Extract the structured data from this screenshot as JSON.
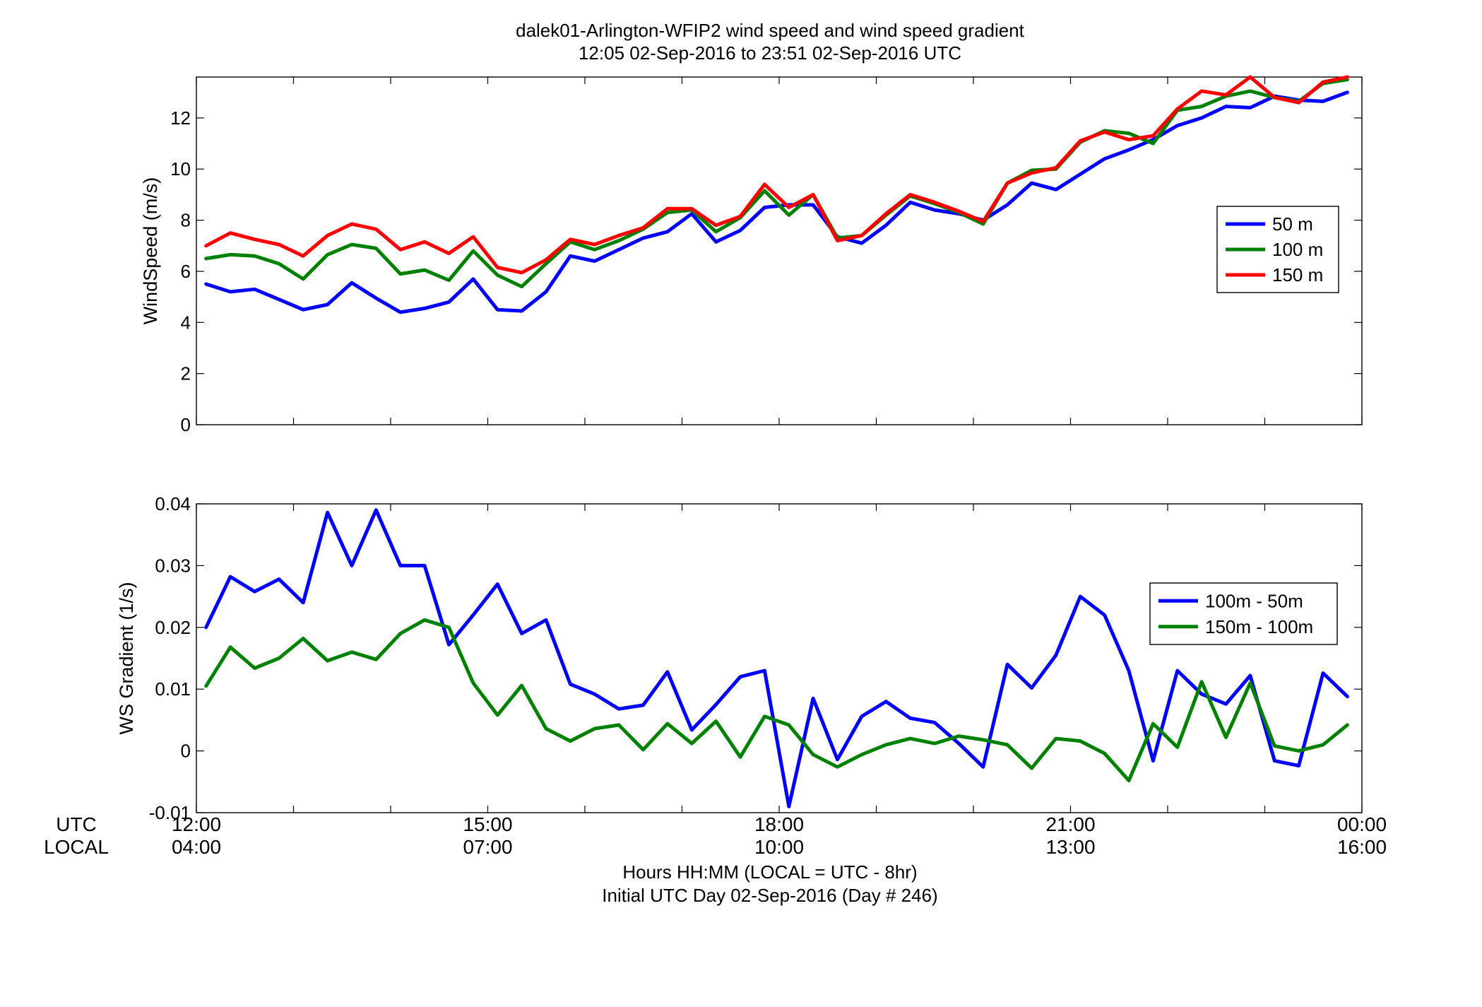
{
  "title_line1": "dalek01-Arlington-WFIP2  wind speed and wind speed gradient",
  "title_line2": "12:05 02-Sep-2016 to 23:51 02-Sep-2016  UTC",
  "row_labels": {
    "utc": "UTC",
    "local": "LOCAL"
  },
  "time_ticks": {
    "utc": [
      "12:00",
      "15:00",
      "18:00",
      "21:00",
      "00:00"
    ],
    "local": [
      "04:00",
      "07:00",
      "10:00",
      "13:00",
      "16:00"
    ]
  },
  "xlabel_line1": "Hours HH:MM  (LOCAL = UTC - 8hr)",
  "xlabel_line2": "Initial UTC Day 02-Sep-2016 (Day # 246)",
  "chart_data": [
    {
      "type": "line",
      "ylabel": "WindSpeed (m/s)",
      "xlim": [
        12.0,
        24.0
      ],
      "ylim": [
        0,
        13.6
      ],
      "yticks": [
        0,
        2,
        4,
        6,
        8,
        10,
        12
      ],
      "ytick_labels": [
        "0",
        "2",
        "4",
        "6",
        "8",
        "10",
        "12"
      ],
      "legend_placement": "right",
      "x": [
        12.1,
        12.35,
        12.6,
        12.85,
        13.1,
        13.35,
        13.6,
        13.85,
        14.1,
        14.35,
        14.6,
        14.85,
        15.1,
        15.35,
        15.6,
        15.85,
        16.1,
        16.35,
        16.6,
        16.85,
        17.1,
        17.35,
        17.6,
        17.85,
        18.1,
        18.35,
        18.6,
        18.85,
        19.1,
        19.35,
        19.6,
        19.85,
        20.1,
        20.35,
        20.6,
        20.85,
        21.1,
        21.35,
        21.6,
        21.85,
        22.1,
        22.35,
        22.6,
        22.85,
        23.1,
        23.35,
        23.6,
        23.85
      ],
      "series": [
        {
          "name": "50 m",
          "color": "#0000ff",
          "values": [
            5.5,
            5.2,
            5.3,
            4.9,
            4.5,
            4.7,
            5.55,
            4.95,
            4.4,
            4.55,
            4.8,
            5.7,
            4.5,
            4.45,
            5.2,
            6.6,
            6.4,
            6.85,
            7.3,
            7.55,
            8.25,
            7.15,
            7.6,
            8.5,
            8.6,
            8.6,
            7.35,
            7.1,
            7.8,
            8.7,
            8.4,
            8.25,
            8.0,
            8.6,
            9.45,
            9.2,
            9.8,
            10.4,
            10.75,
            11.15,
            11.7,
            12.0,
            12.45,
            12.4,
            12.85,
            12.7,
            12.65,
            13.0
          ]
        },
        {
          "name": "100 m",
          "color": "#008000",
          "values": [
            6.5,
            6.65,
            6.6,
            6.3,
            5.7,
            6.65,
            7.05,
            6.9,
            5.9,
            6.05,
            5.65,
            6.8,
            5.85,
            5.4,
            6.3,
            7.15,
            6.85,
            7.2,
            7.65,
            8.3,
            8.4,
            7.55,
            8.1,
            9.15,
            8.2,
            9.0,
            7.3,
            7.4,
            8.2,
            8.95,
            8.65,
            8.3,
            7.85,
            9.45,
            9.95,
            10.0,
            11.05,
            11.5,
            11.4,
            11.0,
            12.3,
            12.45,
            12.85,
            13.05,
            12.8,
            12.65,
            13.35,
            13.5
          ]
        },
        {
          "name": "150 m",
          "color": "#ff0000",
          "values": [
            7.0,
            7.5,
            7.25,
            7.05,
            6.6,
            7.4,
            7.85,
            7.65,
            6.85,
            7.15,
            6.7,
            7.35,
            6.15,
            5.95,
            6.45,
            7.25,
            7.05,
            7.4,
            7.7,
            8.45,
            8.45,
            7.8,
            8.15,
            9.4,
            8.5,
            9.0,
            7.2,
            7.4,
            8.25,
            9.0,
            8.7,
            8.35,
            7.95,
            9.45,
            9.85,
            10.05,
            11.1,
            11.45,
            11.15,
            11.3,
            12.35,
            13.05,
            12.9,
            13.6,
            12.8,
            12.6,
            13.4,
            13.6
          ]
        }
      ]
    },
    {
      "type": "line",
      "ylabel": "WS Gradient (1/s)",
      "xlim": [
        12.0,
        24.0
      ],
      "ylim": [
        -0.01,
        0.04
      ],
      "yticks": [
        -0.01,
        0,
        0.01,
        0.02,
        0.03,
        0.04
      ],
      "ytick_labels": [
        "-0.01",
        "0",
        "0.01",
        "0.02",
        "0.03",
        "0.04"
      ],
      "legend_placement": "right",
      "x": [
        12.1,
        12.35,
        12.6,
        12.85,
        13.1,
        13.35,
        13.6,
        13.85,
        14.1,
        14.35,
        14.6,
        14.85,
        15.1,
        15.35,
        15.6,
        15.85,
        16.1,
        16.35,
        16.6,
        16.85,
        17.1,
        17.35,
        17.6,
        17.85,
        18.1,
        18.35,
        18.6,
        18.85,
        19.1,
        19.35,
        19.6,
        19.85,
        20.1,
        20.35,
        20.6,
        20.85,
        21.1,
        21.35,
        21.6,
        21.85,
        22.1,
        22.35,
        22.6,
        22.85,
        23.1,
        23.35,
        23.6,
        23.85
      ],
      "series": [
        {
          "name": "100m - 50m",
          "color": "#0000ff",
          "values": [
            0.02,
            0.0282,
            0.0258,
            0.0278,
            0.024,
            0.0386,
            0.03,
            0.039,
            0.03,
            0.03,
            0.0172,
            0.022,
            0.027,
            0.019,
            0.0212,
            0.0108,
            0.0092,
            0.0068,
            0.0074,
            0.0128,
            0.0034,
            0.0075,
            0.012,
            0.013,
            -0.009,
            0.0085,
            -0.0014,
            0.0056,
            0.008,
            0.0053,
            0.0046,
            0.0012,
            -0.0026,
            0.014,
            0.0102,
            0.0155,
            0.025,
            0.022,
            0.013,
            -0.0016,
            0.013,
            0.0092,
            0.0076,
            0.0122,
            -0.0016,
            -0.0024,
            0.0126,
            0.0088
          ]
        },
        {
          "name": "150m - 100m",
          "color": "#008000",
          "values": [
            0.0105,
            0.0168,
            0.0134,
            0.015,
            0.0182,
            0.0146,
            0.016,
            0.0148,
            0.019,
            0.0212,
            0.02,
            0.011,
            0.0058,
            0.0106,
            0.0036,
            0.0016,
            0.0036,
            0.0042,
            0.0002,
            0.0044,
            0.0012,
            0.0048,
            -0.001,
            0.0056,
            0.0042,
            -0.0006,
            -0.0026,
            -0.0006,
            0.001,
            0.002,
            0.0012,
            0.0024,
            0.0018,
            0.001,
            -0.0028,
            0.002,
            0.0016,
            -0.0004,
            -0.0048,
            0.0044,
            0.0006,
            0.0112,
            0.0022,
            0.011,
            0.0008,
            0.0,
            0.001,
            0.0042
          ]
        }
      ]
    }
  ]
}
